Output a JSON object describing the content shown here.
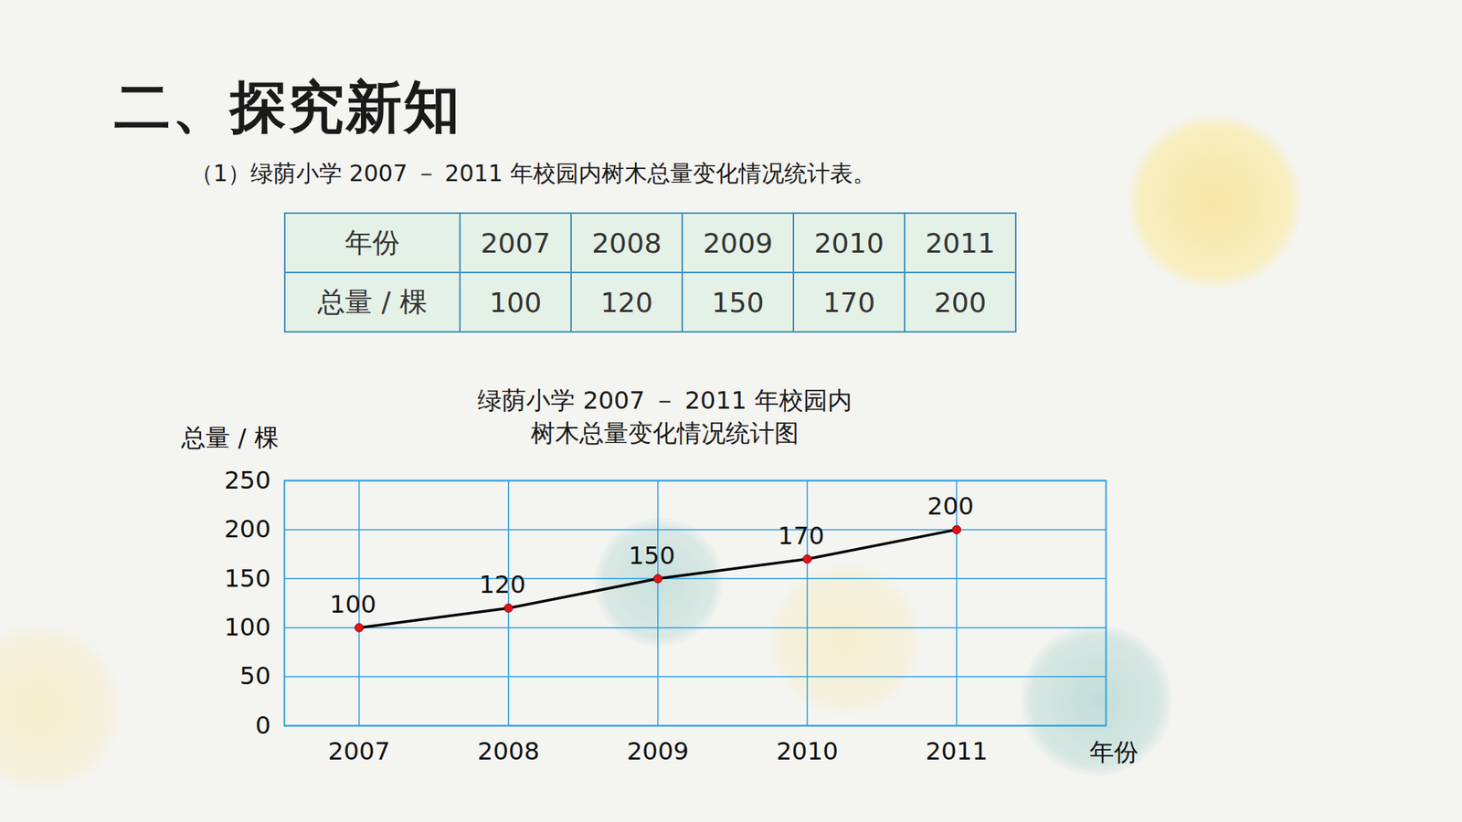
{
  "heading": "二、探究新知",
  "table": {
    "caption": "（1）绿荫小学 2007 － 2011 年校园内树木总量变化情况统计表。",
    "header": [
      "年份",
      2007,
      2008,
      2009,
      2010,
      2011
    ],
    "rows": [
      [
        "总量 / 棵",
        100,
        120,
        150,
        170,
        200
      ]
    ]
  },
  "chart_data": {
    "type": "line",
    "title": "绿荫小学 2007 － 2011 年校园内\n树木总量变化情况统计图",
    "x_label": "年份",
    "y_label": "总量 / 棵",
    "x": [
      2007,
      2008,
      2009,
      2010,
      2011
    ],
    "values": [
      100,
      120,
      150,
      170,
      200
    ],
    "color": "#000000",
    "marker": "circle",
    "xlim": [
      2006.5,
      2012
    ],
    "xticks": [
      2007,
      2008,
      2009,
      2010,
      2011
    ],
    "ylim": [
      0,
      250
    ],
    "yticks": [
      0,
      50,
      100,
      150,
      200,
      250
    ],
    "grid": true,
    "data_labels": true
  }
}
